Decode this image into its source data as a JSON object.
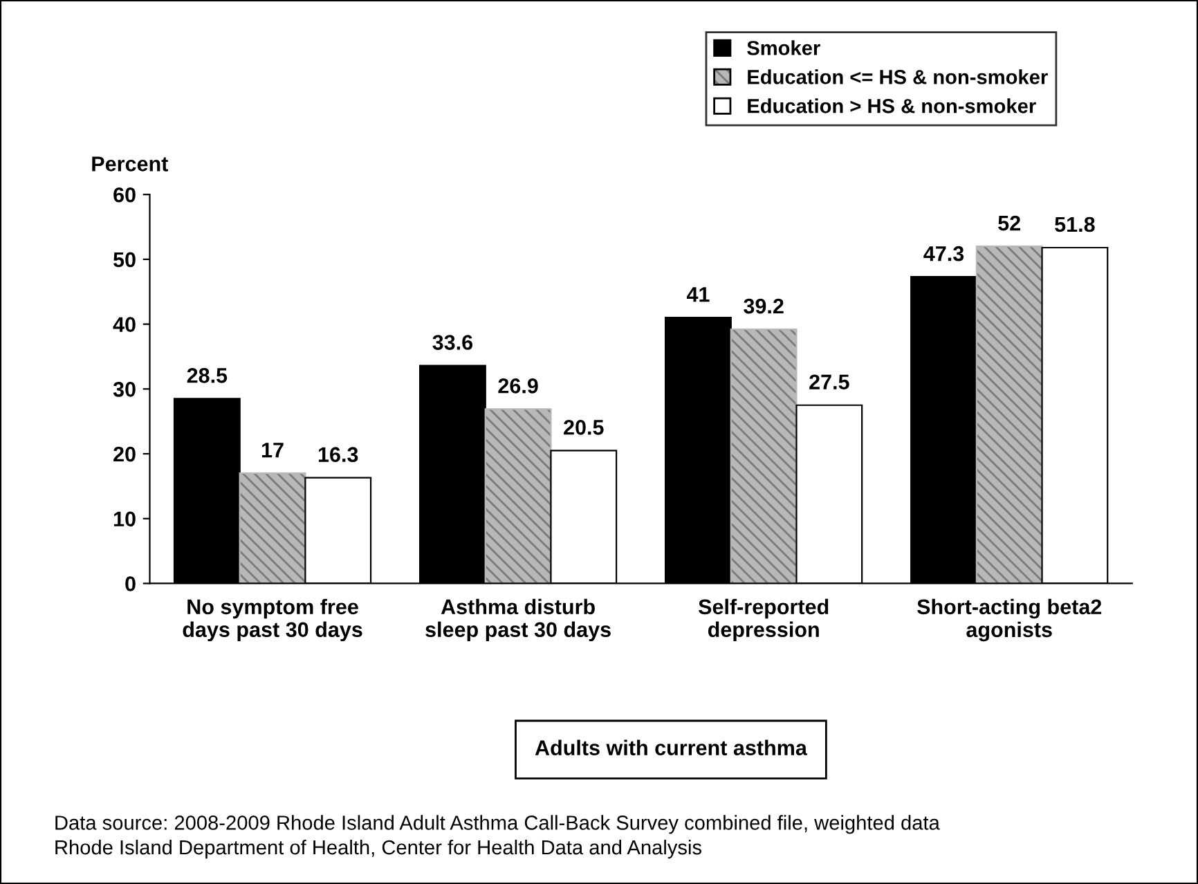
{
  "chart_data": {
    "type": "bar",
    "ylabel": "Percent",
    "xlabel": "Adults with current asthma",
    "categories": [
      "No symptom free\ndays past 30 days",
      "Asthma disturb\nsleep past 30 days",
      "Self-reported\ndepression",
      "Short-acting beta2\nagonists"
    ],
    "series": [
      {
        "name": "Smoker",
        "color": "#000000",
        "values": [
          28.5,
          33.6,
          41,
          47.3
        ]
      },
      {
        "name": "Education <= HS & non-smoker",
        "color": "#b8b8b8",
        "values": [
          17,
          26.9,
          39.2,
          52
        ]
      },
      {
        "name": "Education > HS & non-smoker",
        "color": "#ffffff",
        "values": [
          16.3,
          20.5,
          27.5,
          51.8
        ]
      }
    ],
    "ylim": [
      0,
      60
    ],
    "yticks": [
      0,
      10,
      20,
      30,
      40,
      50,
      60
    ],
    "grid": false,
    "legend": "top right",
    "data_labels": true,
    "annotations": [
      "Data source: 2008-2009 Rhode Island Adult Asthma Call-Back Survey combined file, weighted data\nRhode Island Department of Health, Center for Health Data and Analysis"
    ]
  }
}
